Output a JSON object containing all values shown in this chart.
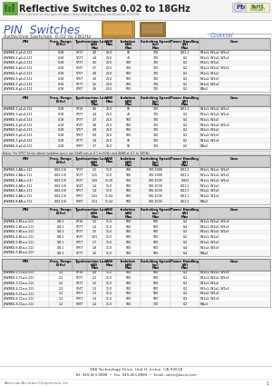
{
  "title": "Reflective Switches 0.02 to 18GHz",
  "subtitle": "The content of this specification may change without notification 7/31/08",
  "section_title": "PIN  Switches",
  "section_subtitle": "Reflective Switches  0.02 to 18GHz",
  "coaxial_label": "Coaxial",
  "note_text": "Notes: For SP1T Series where Isolation specs are 50dB min at 0.1 to 6GHz and 40dB at 0.1 to 18GHz",
  "footer_addr": "188 Technology Drive, Unit H, Irvine, CA 92618",
  "footer_tel": "Tel: 949-453-9888  •  Fax: 949-453-8889  •  Email: sales@aacix.com",
  "footer_company": "American Accurate Components, Inc.",
  "page_num": "1",
  "sections": [
    {
      "rows": [
        [
          "JXWBKG-1-p1c2-111",
          "0-18",
          "SP1T",
          "4.0",
          "21.0",
          "50",
          "700",
          "0.01-1",
          "W1x1, W1x2, W1x3"
        ],
        [
          "JXWBKG-2-p1c2-111",
          "0-18",
          "SP2T",
          "4.4",
          "21.0",
          "40",
          "700",
          "0.2",
          "W1x1, W1x2, W1x3"
        ],
        [
          "JXWBKG-3-p1c2-111",
          "0-18",
          "SP3T",
          "4.5",
          "21.0",
          "100",
          "700",
          "0.2",
          "W1x1, W1x2"
        ],
        [
          "JXWBKG-4-p1c2-111",
          "0-18",
          "SP4T",
          "4.7",
          "21.0",
          "100",
          "700",
          "0.2",
          "W1x1, W1x2, W1x3"
        ],
        [
          "JXWBKG-5-p1c2-111",
          "0-18",
          "SP5T",
          "4.8",
          "21.0",
          "500",
          "700",
          "0.2",
          "W1x1, W1x2"
        ],
        [
          "JXWBKG-6-p1c2-111",
          "0-18",
          "SP6T",
          "3.0",
          "21.0",
          "500",
          "700",
          "0.2",
          "W1x2, W1x3"
        ],
        [
          "JXWBKG-7-p1c2-111",
          "0-18",
          "SP7T",
          "3.2",
          "21.0",
          "500",
          "700",
          "0.2",
          "W1x2, W1x3"
        ],
        [
          "JXWBKG-8-p1c2-111",
          "0-18",
          "SP8T",
          "3.6",
          "21.0",
          "500",
          "700",
          "0.2",
          "W1x2"
        ]
      ]
    },
    {
      "rows": [
        [
          "JXWBKG-1-p1c4-111",
          "0-18",
          "SP1S",
          "4.0",
          "21.0",
          "50",
          "700",
          "0.01-1",
          "W1x1, W1x2, W1x3"
        ],
        [
          "JXWBKG-2-p1c4-111",
          "0-18",
          "SP2T",
          "4.4",
          "21.0",
          "40",
          "700",
          "0.2",
          "W1x1, W1x2, W1x3"
        ],
        [
          "JXWBKG-3-p1c4-111",
          "0-18",
          "SP3T",
          "4.7",
          "21.0",
          "500",
          "700",
          "0.4",
          "W1x1, W1x2"
        ],
        [
          "JXWBKG-4-p1c4-111",
          "0-18",
          "SP4T",
          "4.8",
          "21.0",
          "500",
          "700",
          "0.2",
          "W1x1, W1x2, W1x3"
        ],
        [
          "JXWBKG-5-p1c4-111",
          "0-18",
          "SP5T",
          "4.9",
          "21.0",
          "500",
          "700",
          "0.2",
          "W1x1, W1x2"
        ],
        [
          "JXWBKG-6-p1c4-111",
          "0-18",
          "SP6T",
          "5.0",
          "21.0",
          "500",
          "700",
          "0.2",
          "W1x2, W1x3"
        ],
        [
          "JXWBKG-7-p1c4-111",
          "0-18",
          "SP7T",
          "3.4",
          "21.0",
          "50",
          "700",
          "0.2",
          "W1x2, W1x3"
        ],
        [
          "JXWBKG-8-p1c4-111",
          "0-18",
          "SP8T",
          "3.7",
          "21.0",
          "50",
          "700",
          "0.2",
          "W1x2"
        ]
      ]
    },
    {
      "rows": [
        [
          "JXWBKG-1-AB-e-111",
          "0.02-0.8",
          "SP1T",
          "1.3",
          "11.0",
          "100",
          "700-3000",
          "0.01-1",
          "W1x1, W1x2, W1x3"
        ],
        [
          "JXWBKG-2-AB-e-111",
          "0.02-0.8",
          "SP2T",
          "1.15",
          "11.0",
          "100",
          "700-3000",
          "0.01-1",
          "W1x1, W1x2, W1x3"
        ],
        [
          "JXWBKG-3-AB-e-c(3)",
          "0.02-0.8",
          "SP3T",
          "1.50",
          "11.26",
          "100",
          "100-1000",
          "0.001",
          "W1x1, W1x2, W1x3"
        ],
        [
          "JXWBKG-4-AB-e-111",
          "0.02-0.8",
          "SP4T",
          "1.4",
          "11.0",
          "500",
          "100-1000",
          "0.01-1",
          "W1x1, W1x2"
        ],
        [
          "JXWBKG-5-AB-e-111",
          "0.02-0.8",
          "SP5T",
          "1.4",
          "11.0",
          "500",
          "100-1000",
          "0.01-1",
          "W1x2, W1x3"
        ],
        [
          "JXWBKG-6-AB-e-111",
          "0.02-0.8",
          "SP6T",
          "1.41",
          "11.04",
          "500",
          "100-1000",
          "0.01-1",
          "W1x2, W1x3"
        ],
        [
          "JXWBKG-8-AB-e-111",
          "0.02-0.8",
          "SP8T",
          "1.51",
          "11.24",
          "500",
          "100-1000",
          "0.01-1",
          "W1x2"
        ]
      ]
    },
    {
      "rows": [
        [
          "JXWBKG-1-B1a-e-111",
          "0.8-1",
          "SP1S",
          "1.3",
          "11.0",
          "500",
          "500",
          "0.4",
          "W1x1, W1x2, W1x3"
        ],
        [
          "JXWBKG-2-B1a-e-111",
          "0.8-1",
          "SP2T",
          "1.4",
          "11.0",
          "500",
          "500",
          "0.4",
          "W1x1, W1x2, W1x3"
        ],
        [
          "JXWBKG-3-B1a-e-111",
          "0.8-1",
          "SP3T",
          "1.5",
          "11.0",
          "500",
          "500",
          "0.2",
          "W1x1, W1x2, W1x3"
        ],
        [
          "JXWBKG-4-B1a-e-111",
          "0.8-1",
          "SP4T",
          "1.81",
          "11.0",
          "500",
          "500",
          "0.2",
          "W1x1, W1x2"
        ],
        [
          "JXWBKG-5-B1a-e-111",
          "0.8-1",
          "SP5T",
          "1.7",
          "11.0",
          "500",
          "500",
          "0.2",
          "W1x2, W1x3"
        ],
        [
          "JXWBKG-6-B1a-e-111",
          "0.8-1",
          "SP6T",
          "1.8",
          "11.0",
          "500",
          "500",
          "0.4",
          "W1x2, W1x3"
        ],
        [
          "JXWBKG-7-B1a-e-111",
          "0.8-1",
          "SP7T",
          "1.6",
          "11.0",
          "500",
          "500",
          "0.4",
          "W1x2"
        ]
      ]
    },
    {
      "rows": [
        [
          "JXWBKG-1-C1a-e-111",
          "1-2",
          "SP1S",
          "0.9",
          "11.0",
          "500",
          "500",
          "0.2",
          "W1x1, W1x2, W1x3"
        ],
        [
          "JXWBKG-2-C1a-e-111",
          "1-2",
          "SP2T",
          "1.2",
          "11.0",
          "500",
          "500",
          "0.2",
          "W1x1, W1x2, W1x3"
        ],
        [
          "JXWBKG-3-C1a-e-111",
          "1-2",
          "SP3T",
          "1.2",
          "11.0",
          "500",
          "500",
          "0.2",
          "W1x1, W1x2"
        ],
        [
          "JXWBKG-4-C1a-e-111",
          "1-2",
          "SP4T",
          "1.3",
          "11.0",
          "500",
          "500",
          "0.2",
          "W1x1, W1x2, W1x3"
        ],
        [
          "JXWBKG-5-C1a-e-111",
          "1-2",
          "SP5T",
          "1.3",
          "11.0",
          "500",
          "500",
          "0.2",
          "W1x2, W1x3"
        ],
        [
          "JXWBKG-6-C1a-e-111",
          "1-2",
          "SP6T",
          "1.4",
          "11.0",
          "500",
          "500",
          "0.2",
          "W1x2, W1x3"
        ],
        [
          "JXWBKG-8-C1a-e-111",
          "1-2",
          "SP8T",
          "1.4",
          "11.0",
          "500",
          "700",
          "0.2",
          "W1x2"
        ]
      ]
    }
  ]
}
